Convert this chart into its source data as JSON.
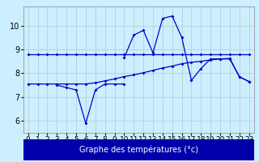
{
  "xlabel": "Graphe des températures (°c)",
  "hours": [
    0,
    1,
    2,
    3,
    4,
    5,
    6,
    7,
    8,
    9,
    10,
    11,
    12,
    13,
    14,
    15,
    16,
    17,
    18,
    19,
    20,
    21,
    22,
    23
  ],
  "line1_hours": [
    0,
    1,
    2,
    3,
    4,
    5,
    6,
    7,
    8,
    9,
    10,
    11,
    12,
    13,
    14,
    15,
    16,
    17,
    18,
    19,
    20,
    21,
    22,
    23
  ],
  "line1_vals": [
    8.8,
    8.8,
    8.8,
    8.8,
    8.8,
    8.8,
    8.8,
    8.8,
    8.8,
    8.8,
    8.8,
    8.8,
    8.8,
    8.8,
    8.8,
    8.8,
    8.8,
    8.8,
    8.8,
    8.8,
    8.8,
    8.8,
    8.8,
    8.8
  ],
  "line2_hours": [
    3,
    4,
    5,
    6,
    7,
    8,
    9,
    10
  ],
  "line2_vals": [
    7.5,
    7.4,
    7.3,
    5.9,
    7.3,
    7.55,
    7.55,
    7.55
  ],
  "line3_hours": [
    10,
    11,
    12,
    13,
    14,
    15,
    16,
    17,
    18,
    19,
    20,
    21,
    22,
    23
  ],
  "line3_vals": [
    8.65,
    9.6,
    9.8,
    8.85,
    10.3,
    10.4,
    9.5,
    7.7,
    8.2,
    8.6,
    8.6,
    8.6,
    7.85,
    7.65
  ],
  "line4_hours": [
    0,
    1,
    2,
    3,
    4,
    5,
    6,
    7,
    8,
    9,
    10,
    11,
    12,
    13,
    14,
    15,
    16,
    17,
    18,
    19,
    20,
    21,
    22,
    23
  ],
  "line4_vals": [
    7.55,
    7.55,
    7.55,
    7.55,
    7.55,
    7.55,
    7.55,
    7.6,
    7.68,
    7.76,
    7.86,
    7.93,
    8.02,
    8.12,
    8.22,
    8.3,
    8.4,
    8.46,
    8.5,
    8.56,
    8.6,
    8.62,
    7.85,
    7.65
  ],
  "ylim": [
    5.5,
    10.8
  ],
  "yticks": [
    6,
    7,
    8,
    9,
    10
  ],
  "bg_color": "#cceeff",
  "line_color": "#0000cc",
  "grid_color": "#aacccc",
  "xlabel_bg": "#0000aa",
  "xlabel_fg": "#ffffff",
  "xlabel_fontsize": 7,
  "tick_fontsize": 6.5,
  "marker": "D",
  "markersize": 2.0,
  "linewidth": 0.9
}
